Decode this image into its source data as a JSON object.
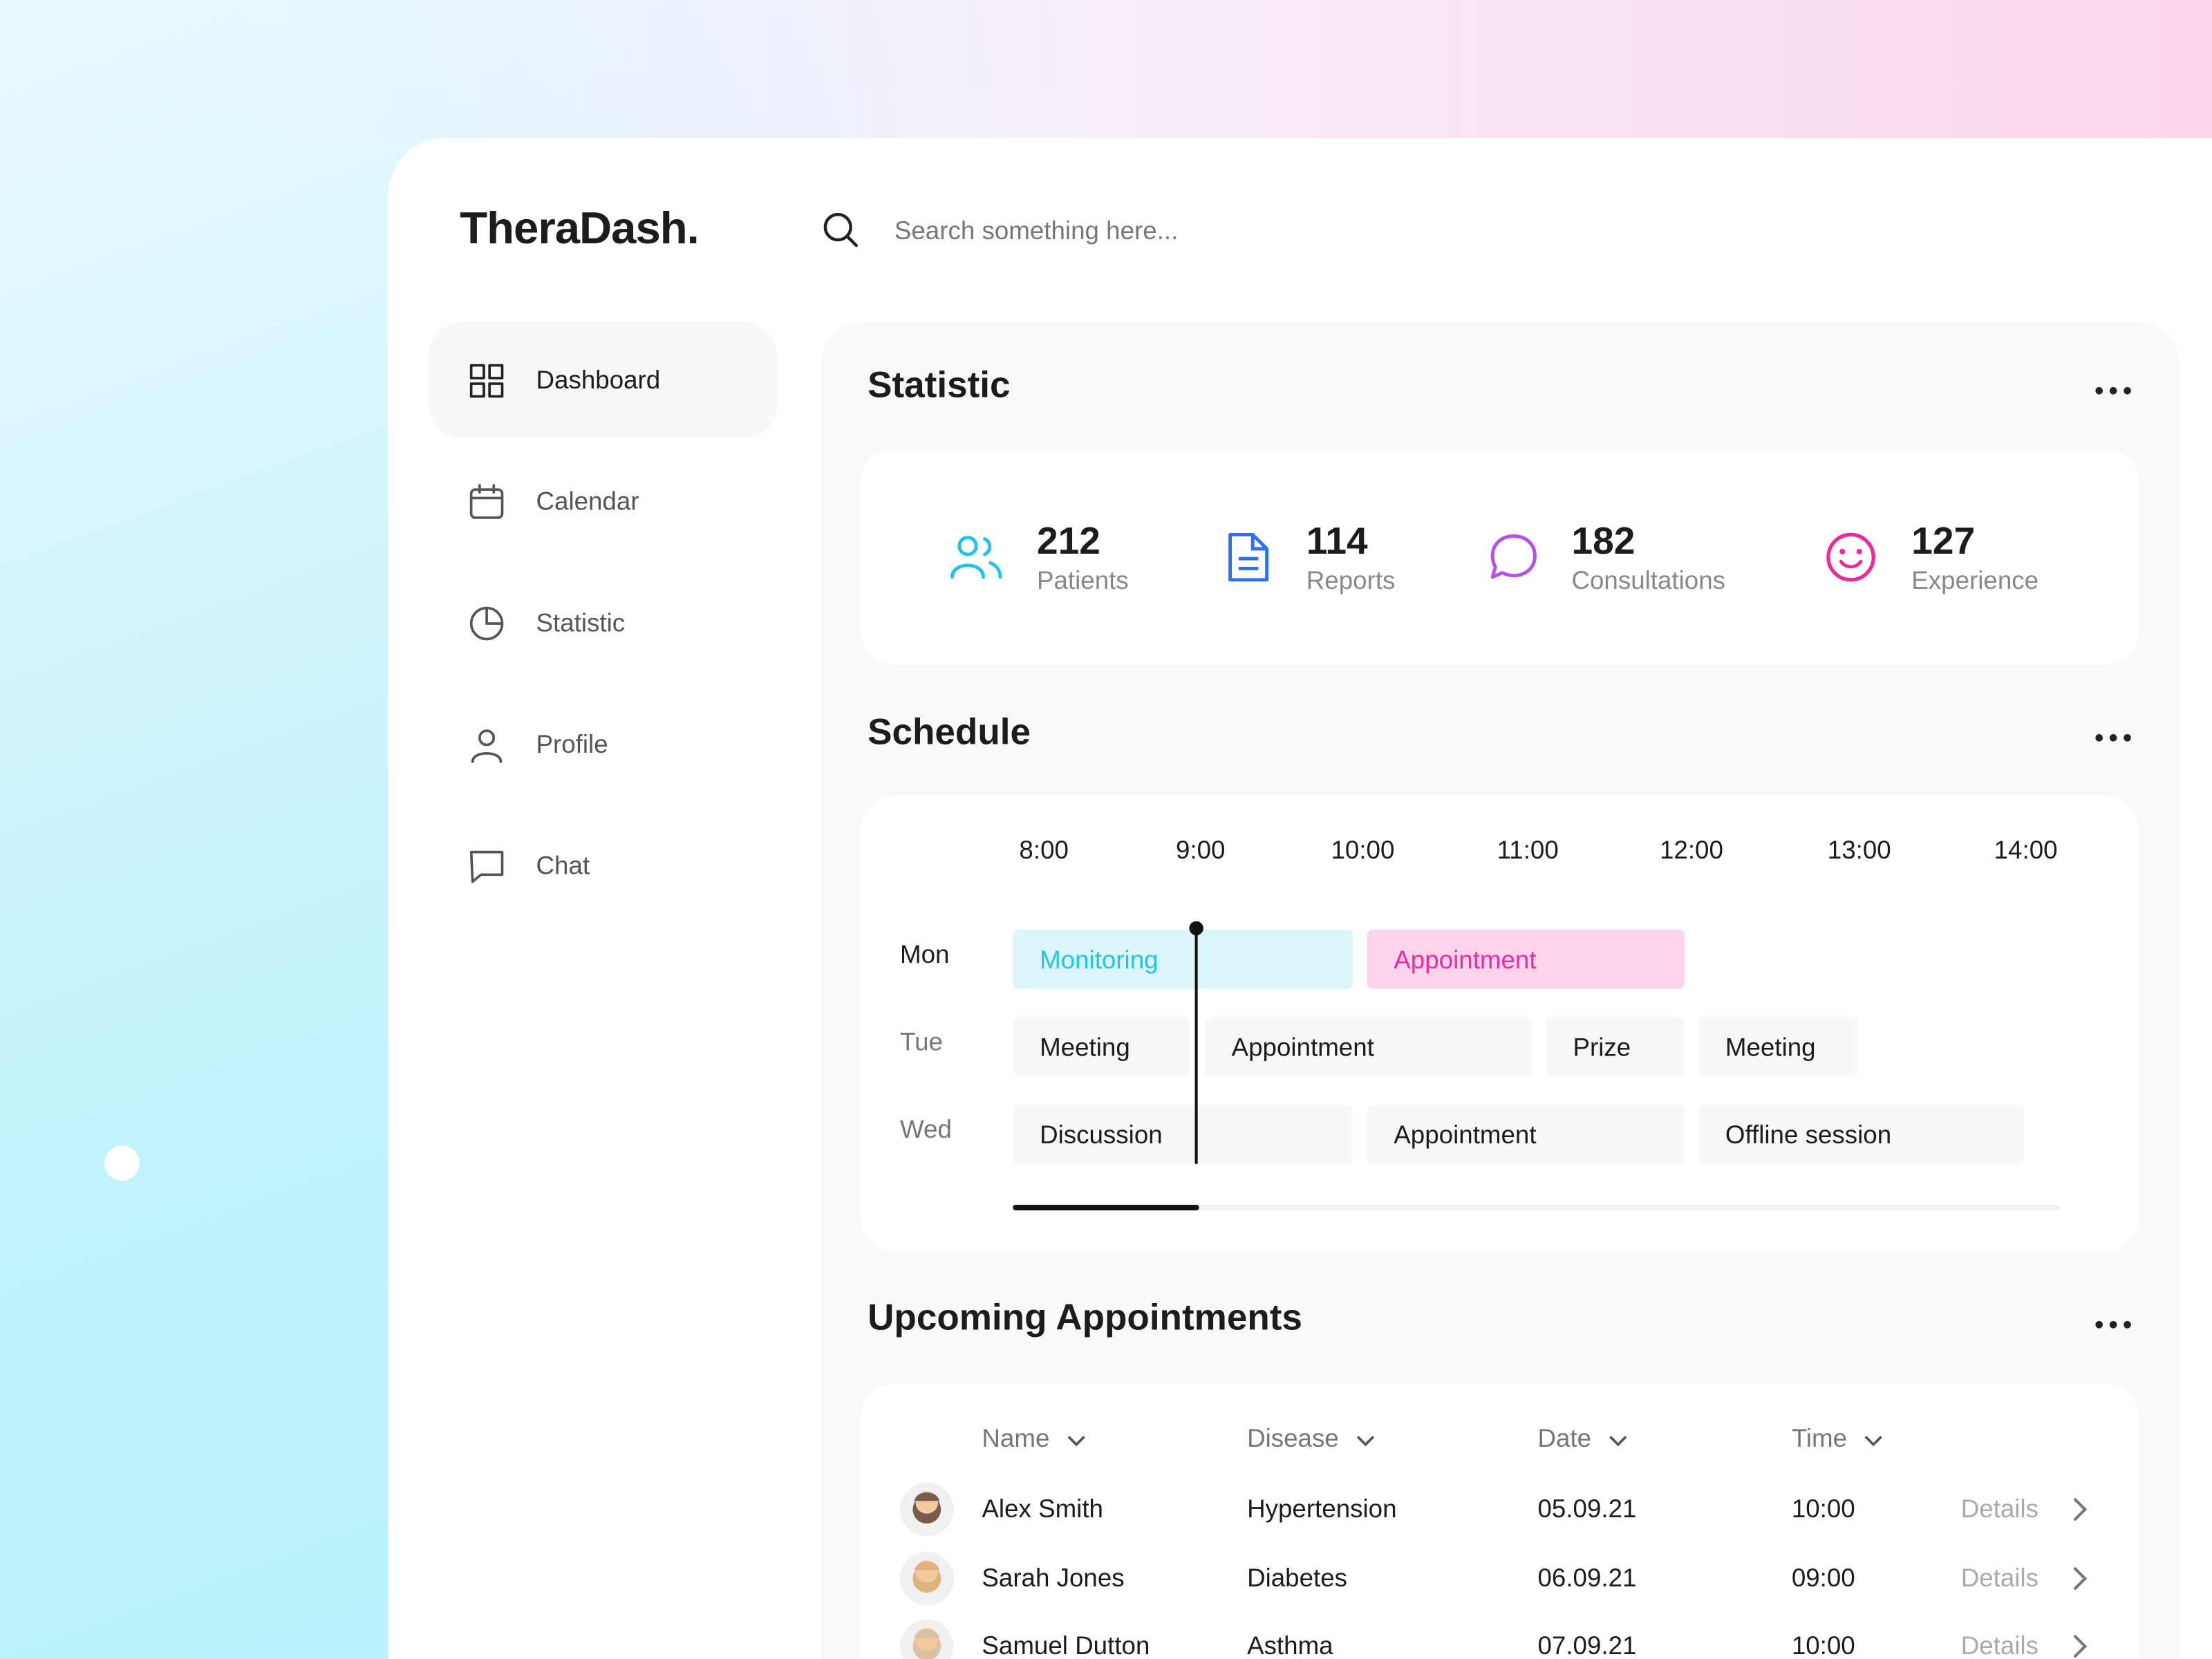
{
  "brand": "TheraDash.",
  "search": {
    "placeholder": "Search something here..."
  },
  "nav": [
    "Dashboard",
    "Calendar",
    "Statistic",
    "Profile",
    "Chat"
  ],
  "statistic": {
    "title": "Statistic",
    "items": [
      {
        "value": "212",
        "label": "Patients",
        "color": "#22c3e6"
      },
      {
        "value": "114",
        "label": "Reports",
        "color": "#2f6fe8"
      },
      {
        "value": "182",
        "label": "Consultations",
        "color": "#b64ff0"
      },
      {
        "value": "127",
        "label": "Experience",
        "color": "#ee2a9c"
      }
    ]
  },
  "schedule": {
    "title": "Schedule",
    "times": [
      "8:00",
      "9:00",
      "10:00",
      "11:00",
      "12:00",
      "13:00",
      "14:00"
    ],
    "rows": [
      {
        "day": "Mon",
        "events": [
          {
            "name": "Monitoring",
            "color": "#1ec8e0",
            "background": "#dcf5fb"
          },
          {
            "name": "Appointment",
            "color": "#ef2aa0",
            "background": "#ffd4ea"
          }
        ]
      },
      {
        "day": "Tue",
        "events": [
          {
            "name": "Meeting"
          },
          {
            "name": "Appointment"
          },
          {
            "name": "Prize"
          },
          {
            "name": "Meeting"
          }
        ]
      },
      {
        "day": "Wed",
        "events": [
          {
            "name": "Discussion"
          },
          {
            "name": "Appointment"
          },
          {
            "name": "Offline session"
          }
        ]
      }
    ]
  },
  "appointments": {
    "title": "Upcoming Appointments",
    "columns": [
      "Name",
      "Disease",
      "Date",
      "Time"
    ],
    "rows": [
      {
        "name": "Alex Smith",
        "disease": "Hypertension",
        "date": "05.09.21",
        "time": "10:00",
        "action": "Details"
      },
      {
        "name": "Sarah Jones",
        "disease": "Diabetes",
        "date": "06.09.21",
        "time": "09:00",
        "action": "Details"
      },
      {
        "name": "Samuel Dutton",
        "disease": "Asthma",
        "date": "07.09.21",
        "time": "10:00",
        "action": "Details"
      }
    ]
  }
}
